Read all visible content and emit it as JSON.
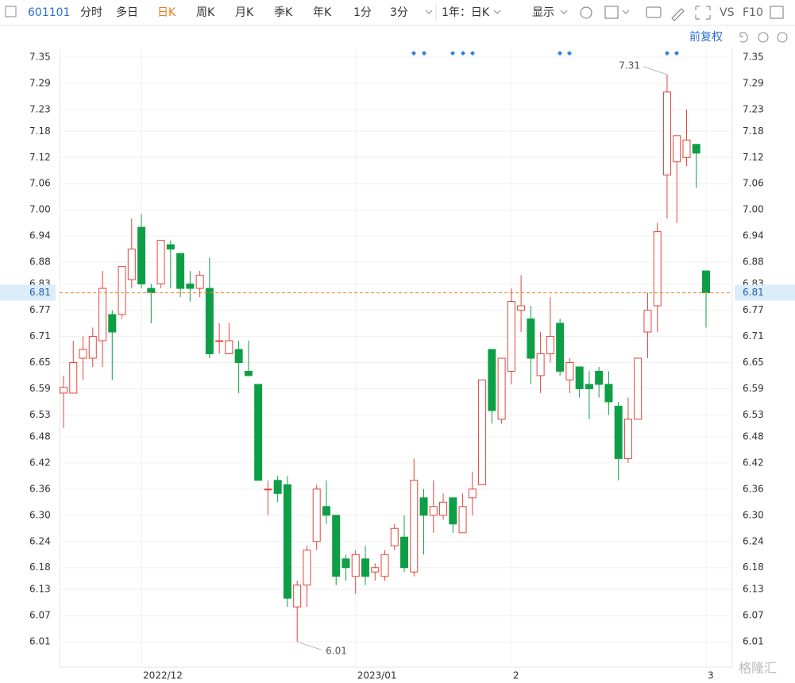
{
  "toolbar": {
    "code": "601101",
    "tabs": [
      "分时",
      "多日",
      "日K",
      "周K",
      "月K",
      "季K",
      "年K",
      "1分",
      "3分"
    ],
    "period": "1年：日K",
    "display": "显示",
    "vs": "VS",
    "f10": "F10",
    "adjust": "前复权"
  },
  "watermark": "格隆汇",
  "chart_data": {
    "type": "candlestick",
    "categories": [
      null,
      null,
      null,
      null,
      null,
      null,
      null,
      null,
      "2022/12",
      null,
      null,
      null,
      null,
      null,
      null,
      null,
      null,
      null,
      null,
      null,
      null,
      null,
      null,
      null,
      null,
      null,
      null,
      null,
      null,
      null,
      "2023/01",
      null,
      null,
      null,
      null,
      null,
      null,
      null,
      null,
      null,
      null,
      null,
      null,
      null,
      null,
      null,
      "2",
      null,
      null,
      null,
      null,
      null,
      null,
      null,
      null,
      null,
      null,
      null,
      null,
      null,
      null,
      null,
      null,
      null,
      null,
      null,
      "3"
    ],
    "series": [
      {
        "up_color": "#e2453c",
        "down_color": "#0e9f46",
        "open": [
          6.58,
          6.58,
          6.66,
          6.66,
          6.7,
          6.76,
          6.76,
          6.84,
          6.96,
          6.82,
          6.83,
          6.92,
          6.9,
          6.83,
          6.82,
          6.82,
          6.7,
          6.67,
          6.68,
          6.63,
          6.6,
          6.36,
          6.38,
          6.37,
          6.09,
          6.14,
          6.24,
          6.32,
          6.3,
          6.2,
          6.16,
          6.2,
          6.17,
          6.16,
          6.23,
          6.25,
          6.17,
          6.34,
          6.3,
          6.3,
          6.34,
          6.26,
          6.34,
          6.37,
          6.68,
          6.52,
          6.63,
          6.77,
          6.75,
          6.62,
          6.67,
          6.74,
          6.61,
          6.64,
          6.6,
          6.63,
          6.6,
          6.55,
          6.43,
          6.52,
          6.72,
          6.78,
          7.08,
          7.11,
          7.12,
          7.15,
          6.86
        ],
        "high": [
          6.62,
          6.7,
          6.71,
          6.73,
          6.86,
          6.77,
          6.87,
          6.98,
          6.99,
          6.83,
          6.93,
          6.93,
          6.9,
          6.86,
          6.86,
          6.89,
          6.74,
          6.74,
          6.7,
          6.7,
          6.6,
          6.38,
          6.39,
          6.39,
          6.15,
          6.23,
          6.37,
          6.38,
          6.3,
          6.21,
          6.22,
          6.23,
          6.19,
          6.22,
          6.28,
          6.3,
          6.43,
          6.36,
          6.38,
          6.35,
          6.34,
          6.35,
          6.4,
          6.61,
          6.68,
          6.66,
          6.82,
          6.85,
          6.78,
          6.72,
          6.8,
          6.75,
          6.66,
          6.64,
          6.63,
          6.64,
          6.63,
          6.56,
          6.57,
          6.66,
          6.81,
          6.97,
          7.31,
          7.17,
          7.23,
          7.15,
          6.86
        ],
        "low": [
          6.5,
          6.58,
          6.61,
          6.64,
          6.64,
          6.61,
          6.75,
          6.82,
          6.82,
          6.74,
          6.82,
          6.82,
          6.8,
          6.79,
          6.8,
          6.66,
          6.67,
          6.67,
          6.58,
          6.62,
          6.38,
          6.3,
          6.33,
          6.09,
          6.01,
          6.09,
          6.22,
          6.28,
          6.14,
          6.15,
          6.12,
          6.14,
          6.15,
          6.15,
          6.22,
          6.17,
          6.16,
          6.21,
          6.26,
          6.29,
          6.26,
          6.26,
          6.3,
          6.37,
          6.51,
          6.51,
          6.6,
          6.72,
          6.6,
          6.58,
          6.65,
          6.62,
          6.58,
          6.57,
          6.52,
          6.57,
          6.53,
          6.38,
          6.42,
          6.52,
          6.66,
          6.72,
          6.98,
          6.97,
          7.1,
          7.05,
          6.73
        ],
        "close": [
          6.593,
          6.65,
          6.68,
          6.71,
          6.82,
          6.72,
          6.87,
          6.91,
          6.83,
          6.81,
          6.93,
          6.91,
          6.82,
          6.82,
          6.85,
          6.67,
          6.7,
          6.7,
          6.65,
          6.62,
          6.38,
          6.36,
          6.35,
          6.11,
          6.14,
          6.22,
          6.36,
          6.3,
          6.16,
          6.18,
          6.21,
          6.16,
          6.18,
          6.21,
          6.27,
          6.18,
          6.38,
          6.3,
          6.32,
          6.33,
          6.28,
          6.32,
          6.36,
          6.61,
          6.54,
          6.66,
          6.79,
          6.78,
          6.66,
          6.67,
          6.71,
          6.63,
          6.65,
          6.59,
          6.59,
          6.6,
          6.56,
          6.43,
          6.52,
          6.66,
          6.77,
          6.95,
          7.27,
          7.17,
          7.16,
          7.13,
          6.81
        ]
      }
    ],
    "ylim": [
      5.952,
      7.368
    ],
    "yticks": [
      {
        "value": 6.01,
        "label": "6.01"
      },
      {
        "value": 6.07,
        "label": "6.07"
      },
      {
        "value": 6.13,
        "label": "6.13"
      },
      {
        "value": 6.18,
        "label": "6.18"
      },
      {
        "value": 6.24,
        "label": "6.24"
      },
      {
        "value": 6.3,
        "label": "6.30"
      },
      {
        "value": 6.36,
        "label": "6.36"
      },
      {
        "value": 6.42,
        "label": "6.42"
      },
      {
        "value": 6.48,
        "label": "6.48"
      },
      {
        "value": 6.53,
        "label": "6.53"
      },
      {
        "value": 6.59,
        "label": "6.59"
      },
      {
        "value": 6.65,
        "label": "6.65"
      },
      {
        "value": 6.71,
        "label": "6.71"
      },
      {
        "value": 6.77,
        "label": "6.77"
      },
      {
        "value": 6.83,
        "label": "6.83"
      },
      {
        "value": 6.88,
        "label": "6.88"
      },
      {
        "value": 6.94,
        "label": "6.94"
      },
      {
        "value": 7.0,
        "label": "7.00"
      },
      {
        "value": 7.06,
        "label": "7.06"
      },
      {
        "value": 7.12,
        "label": "7.12"
      },
      {
        "value": 7.18,
        "label": "7.18"
      },
      {
        "value": 7.23,
        "label": "7.23"
      },
      {
        "value": 7.29,
        "label": "7.29"
      },
      {
        "value": 7.35,
        "label": "7.35"
      }
    ],
    "grid": true,
    "last_price": 6.81,
    "last_price_color": "#f08a2c",
    "max_label": 7.31,
    "min_label": 6.01
  }
}
